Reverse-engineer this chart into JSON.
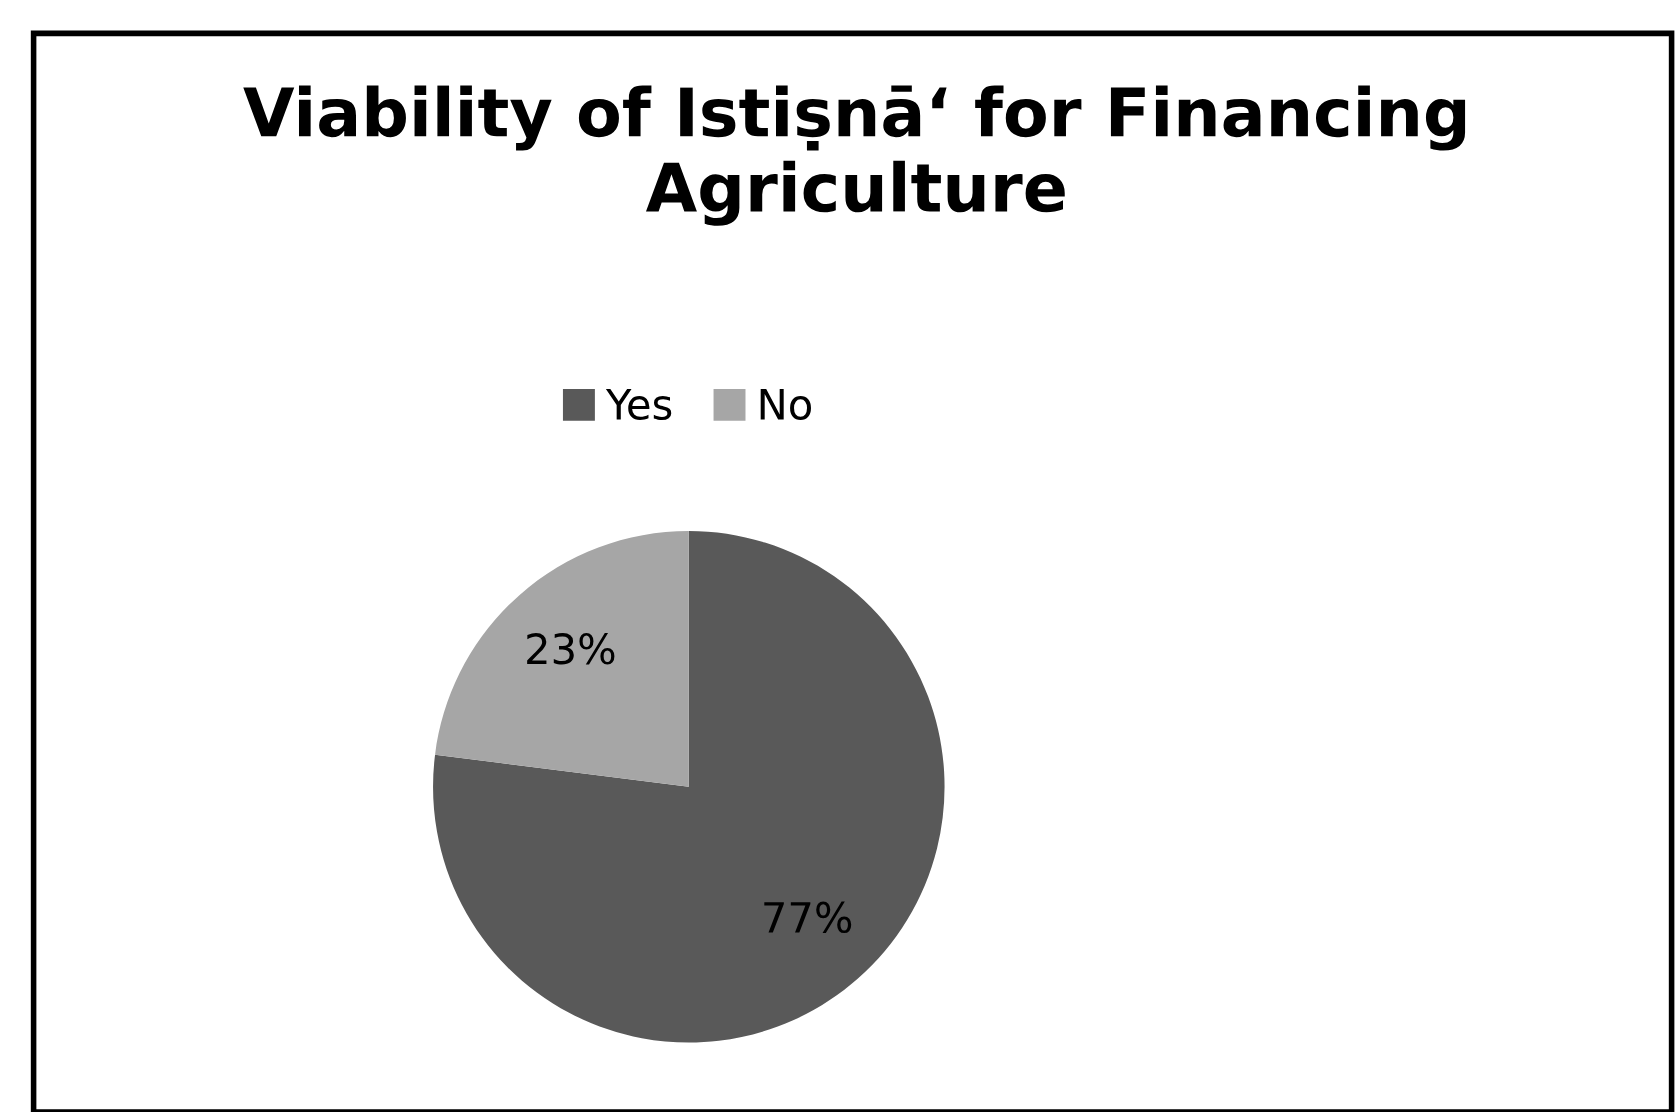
{
  "chart_data": {
    "type": "pie",
    "title": "Viability of Istiṣnā‘ for Financing Agriculture",
    "categories": [
      "Yes",
      "No"
    ],
    "values": [
      77,
      23
    ],
    "colors": [
      "#595959",
      "#a6a6a6"
    ],
    "value_labels": [
      "77%",
      "23%"
    ],
    "legend": "top"
  }
}
